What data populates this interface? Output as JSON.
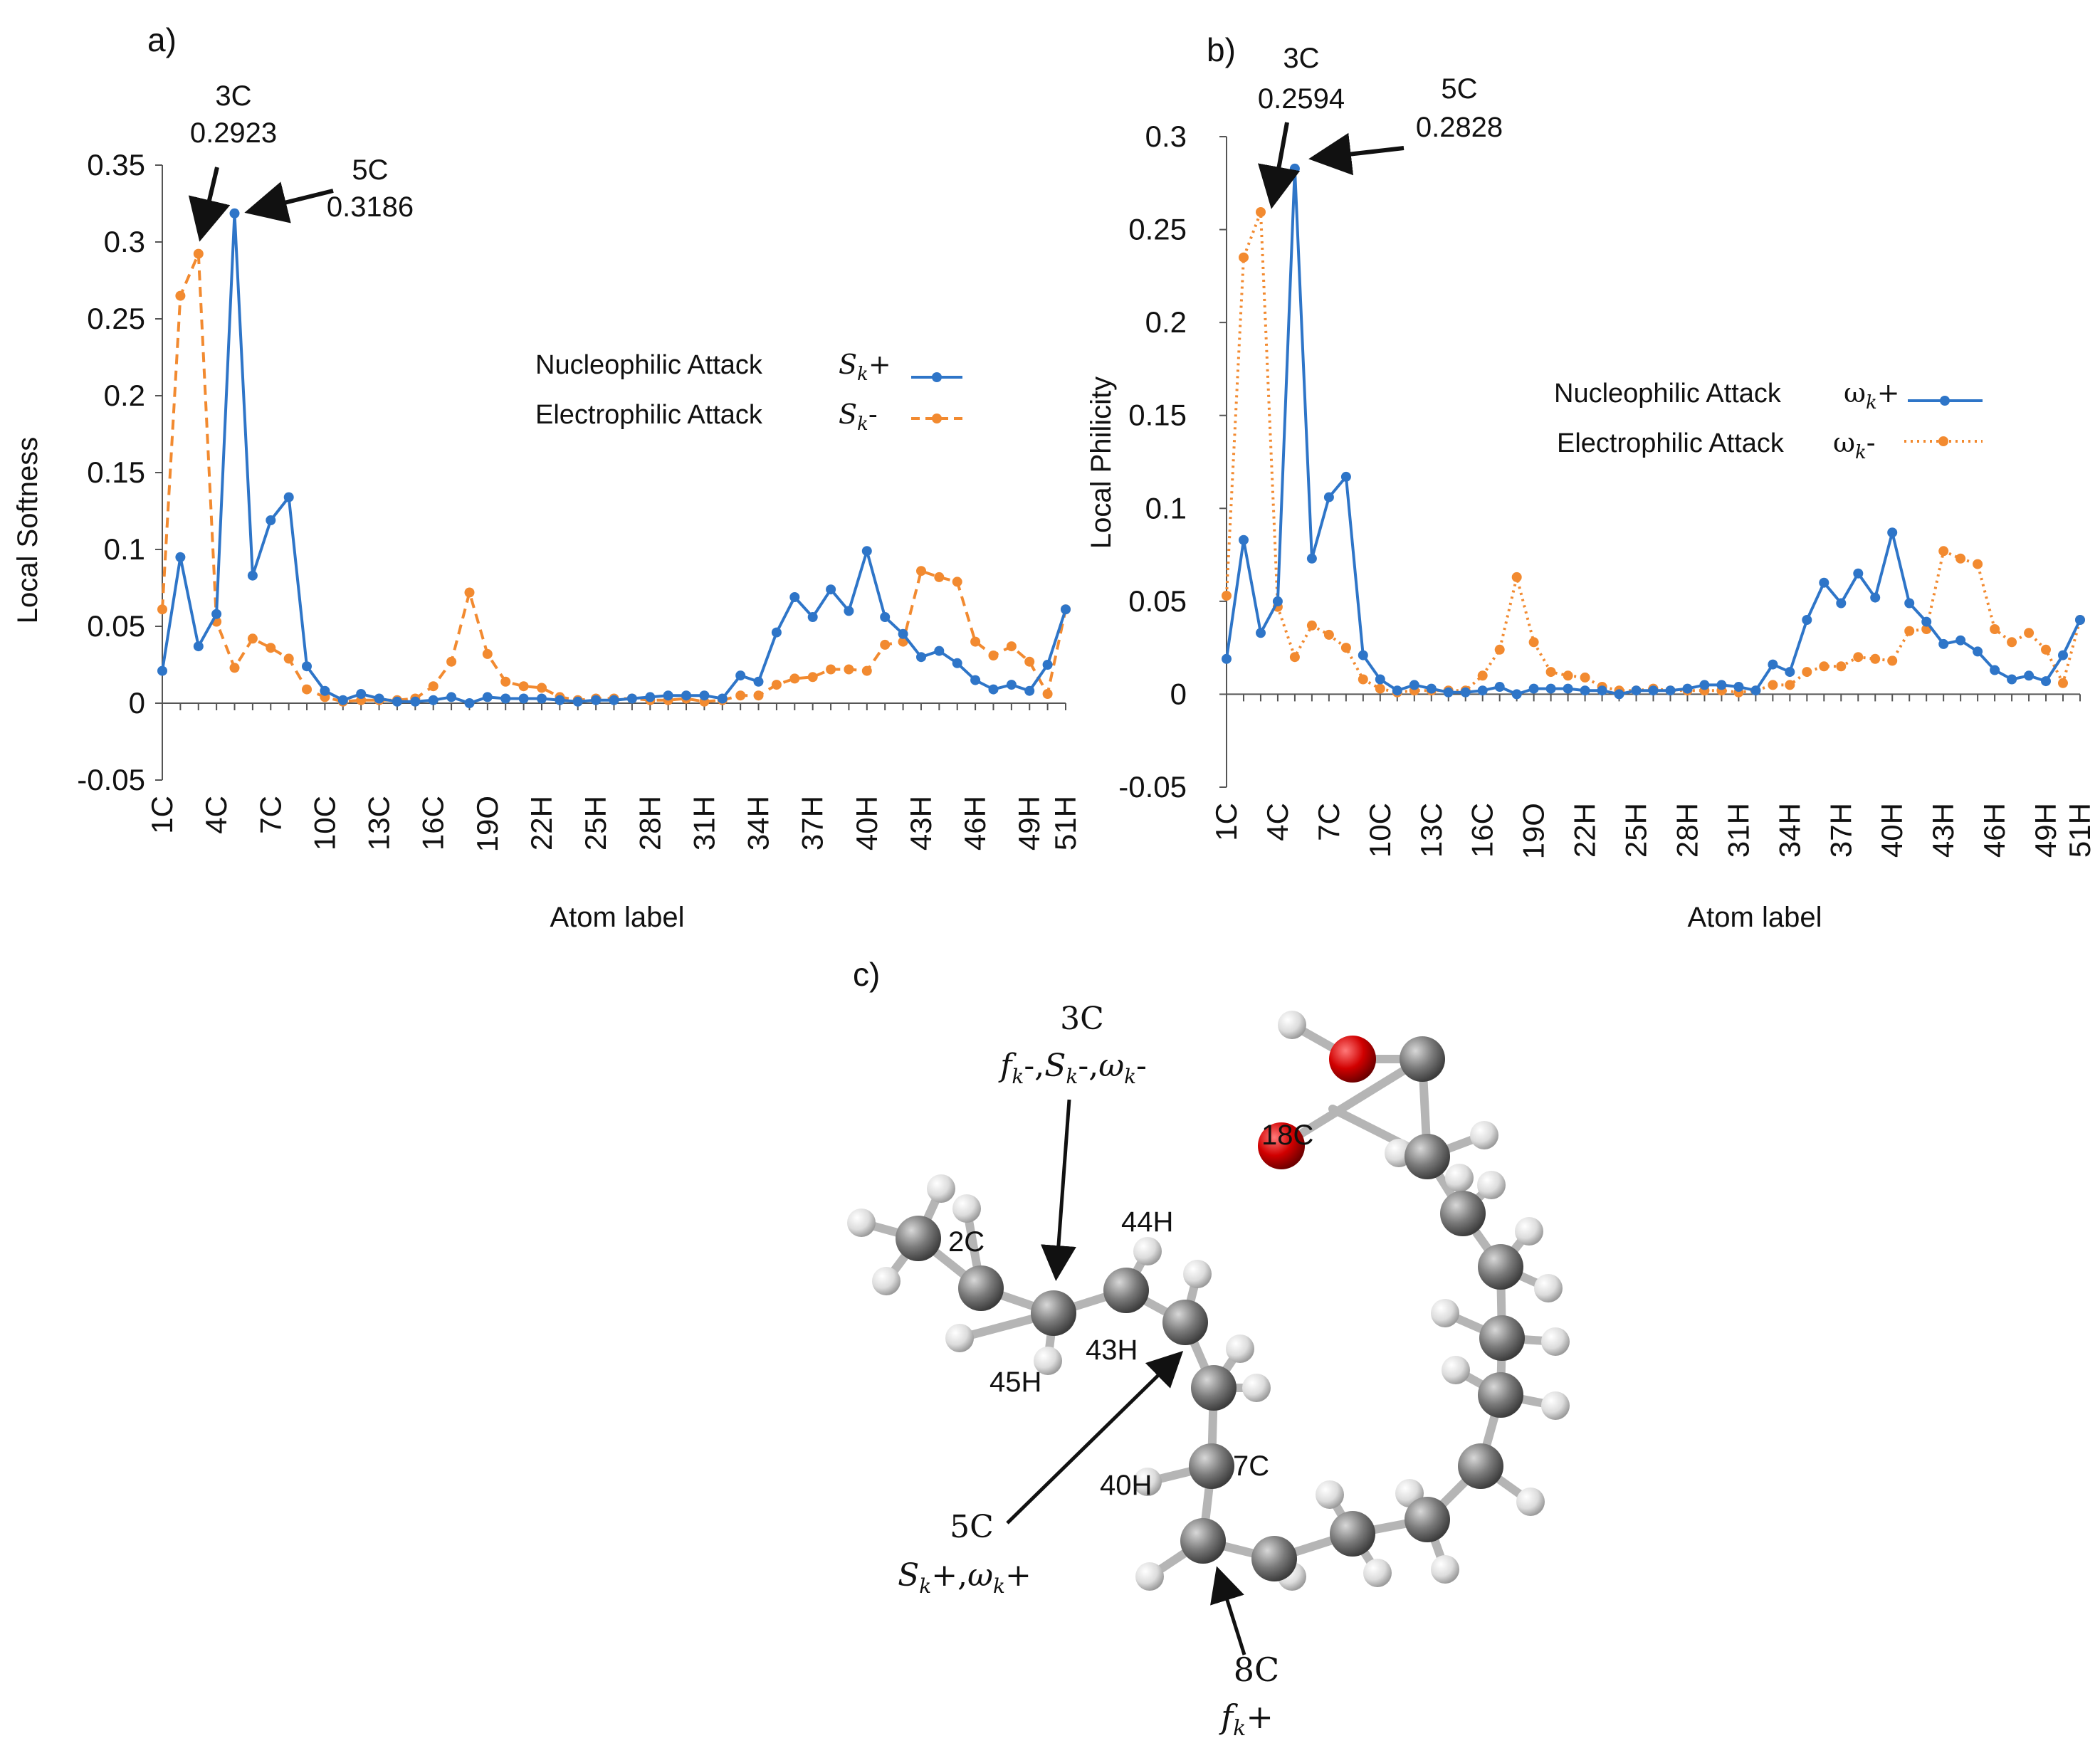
{
  "colors": {
    "nucleophilic": "#2E75C8",
    "electrophilic": "#F28A30",
    "axis": "#555555",
    "text": "#111111",
    "carbon": "#7a7a7a",
    "hydrogen": "#e4e4e4",
    "oxygen": "#d10000",
    "bond": "#b5b5b5"
  },
  "chart_data": [
    {
      "panel": "a)",
      "type": "line",
      "xlabel": "Atom label",
      "ylabel": "Local Softness",
      "ylim": [
        -0.05,
        0.35
      ],
      "yticks": [
        "-0.05",
        "0",
        "0.05",
        "0.1",
        "0.15",
        "0.2",
        "0.25",
        "0.3",
        "0.35"
      ],
      "ytick_values": [
        -0.05,
        0,
        0.05,
        0.1,
        0.15,
        0.2,
        0.25,
        0.3,
        0.35
      ],
      "xtick_labels": [
        "1C",
        "4C",
        "7C",
        "10C",
        "13C",
        "16C",
        "19O",
        "22H",
        "25H",
        "28H",
        "31H",
        "34H",
        "37H",
        "40H",
        "43H",
        "46H",
        "49H",
        "51H"
      ],
      "xtick_atoms": [
        1,
        4,
        7,
        10,
        13,
        16,
        19,
        22,
        25,
        28,
        31,
        34,
        37,
        40,
        43,
        46,
        49,
        51
      ],
      "legend": [
        {
          "label": "Nucleophilic Attack",
          "symbol": "S",
          "sign": "+"
        },
        {
          "label": "Electrophilic Attack",
          "symbol": "S",
          "sign": "-"
        }
      ],
      "series": [
        {
          "name": "Nucleophilic Attack Sk+",
          "style": "solid",
          "values": [
            0.021,
            0.095,
            0.037,
            0.058,
            0.3186,
            0.083,
            0.119,
            0.134,
            0.024,
            0.008,
            0.002,
            0.006,
            0.003,
            0.001,
            0.001,
            0.002,
            0.004,
            0.0,
            0.004,
            0.003,
            0.003,
            0.003,
            0.002,
            0.001,
            0.002,
            0.002,
            0.003,
            0.004,
            0.005,
            0.005,
            0.005,
            0.003,
            0.018,
            0.014,
            0.046,
            0.069,
            0.056,
            0.074,
            0.06,
            0.099,
            0.056,
            0.045,
            0.03,
            0.034,
            0.026,
            0.015,
            0.009,
            0.012,
            0.008,
            0.025,
            0.061
          ]
        },
        {
          "name": "Electrophilic Attack Sk-",
          "style": "dashed",
          "values": [
            0.061,
            0.265,
            0.2923,
            0.053,
            0.023,
            0.042,
            0.036,
            0.029,
            0.009,
            0.004,
            0.001,
            0.002,
            0.002,
            0.002,
            0.003,
            0.011,
            0.027,
            0.072,
            0.032,
            0.014,
            0.011,
            0.01,
            0.004,
            0.002,
            0.003,
            0.003,
            0.003,
            0.002,
            0.002,
            0.003,
            0.001,
            0.002,
            0.005,
            0.005,
            0.012,
            0.016,
            0.017,
            0.022,
            0.022,
            0.021,
            0.038,
            0.04,
            0.086,
            0.082,
            0.079,
            0.04,
            0.031,
            0.037,
            0.027,
            0.006,
            0.061
          ]
        }
      ],
      "annotations": [
        {
          "atom_label": "3C",
          "value_text": "0.2923",
          "atom": 3,
          "series": 1
        },
        {
          "atom_label": "5C",
          "value_text": "0.3186",
          "atom": 5,
          "series": 0
        }
      ]
    },
    {
      "panel": "b)",
      "type": "line",
      "xlabel": "Atom label",
      "ylabel": "Local Philicity",
      "ylim": [
        -0.05,
        0.3
      ],
      "yticks": [
        "-0.05",
        "0",
        "0.05",
        "0.1",
        "0.15",
        "0.2",
        "0.25",
        "0.3"
      ],
      "ytick_values": [
        -0.05,
        0,
        0.05,
        0.1,
        0.15,
        0.2,
        0.25,
        0.3
      ],
      "xtick_labels": [
        "1C",
        "4C",
        "7C",
        "10C",
        "13C",
        "16C",
        "19O",
        "22H",
        "25H",
        "28H",
        "31H",
        "34H",
        "37H",
        "40H",
        "43H",
        "46H",
        "49H",
        "51H"
      ],
      "xtick_atoms": [
        1,
        4,
        7,
        10,
        13,
        16,
        19,
        22,
        25,
        28,
        31,
        34,
        37,
        40,
        43,
        46,
        49,
        51
      ],
      "legend": [
        {
          "label": "Nucleophilic Attack",
          "symbol": "ω",
          "sign": "+"
        },
        {
          "label": "Electrophilic Attack",
          "symbol": "ω",
          "sign": "-"
        }
      ],
      "series": [
        {
          "name": "Nucleophilic Attack ωk+",
          "style": "solid",
          "values": [
            0.019,
            0.083,
            0.033,
            0.05,
            0.2828,
            0.073,
            0.106,
            0.117,
            0.021,
            0.008,
            0.002,
            0.005,
            0.003,
            0.001,
            0.001,
            0.002,
            0.004,
            0.0,
            0.003,
            0.003,
            0.003,
            0.002,
            0.002,
            0.0,
            0.002,
            0.002,
            0.002,
            0.003,
            0.005,
            0.005,
            0.004,
            0.002,
            0.016,
            0.012,
            0.04,
            0.06,
            0.049,
            0.065,
            0.052,
            0.087,
            0.049,
            0.039,
            0.027,
            0.029,
            0.023,
            0.013,
            0.008,
            0.01,
            0.007,
            0.021,
            0.04
          ]
        },
        {
          "name": "Electrophilic Attack ωk-",
          "style": "dotted",
          "values": [
            0.053,
            0.235,
            0.2594,
            0.047,
            0.02,
            0.037,
            0.032,
            0.025,
            0.008,
            0.003,
            0.001,
            0.002,
            0.002,
            0.002,
            0.002,
            0.01,
            0.024,
            0.063,
            0.028,
            0.012,
            0.01,
            0.009,
            0.004,
            0.002,
            0.002,
            0.003,
            0.002,
            0.002,
            0.002,
            0.002,
            0.001,
            0.002,
            0.005,
            0.005,
            0.012,
            0.015,
            0.015,
            0.02,
            0.019,
            0.018,
            0.034,
            0.035,
            0.077,
            0.073,
            0.07,
            0.035,
            0.028,
            0.033,
            0.024,
            0.006,
            0.04
          ]
        }
      ],
      "annotations": [
        {
          "atom_label": "3C",
          "value_text": "0.2594",
          "atom": 3,
          "series": 1
        },
        {
          "atom_label": "5C",
          "value_text": "0.2828",
          "atom": 5,
          "series": 0
        }
      ]
    }
  ],
  "panel_c": {
    "panel": "c)",
    "atom_labels": [
      "18C",
      "2C",
      "44H",
      "43H",
      "45H",
      "40H",
      "7C"
    ],
    "callouts": [
      {
        "atom": "3C",
        "descriptors": [
          "f",
          "-,",
          "S",
          "-,",
          "ω",
          "-"
        ]
      },
      {
        "atom": "5C",
        "descriptors": [
          "S",
          "+,",
          "ω",
          "+"
        ]
      },
      {
        "atom": "8C",
        "descriptors": [
          "f",
          "+"
        ]
      }
    ],
    "subscript": "k"
  }
}
